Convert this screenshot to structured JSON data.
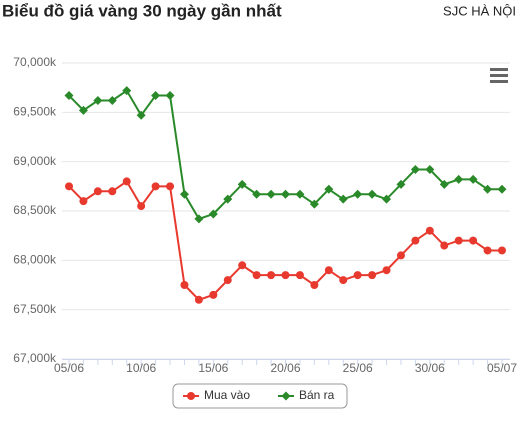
{
  "chart_data": {
    "type": "line",
    "title": "Biểu đồ giá vàng 30 ngày gần nhất",
    "subtitle": "SJC HÀ NỘI",
    "categories": [
      "05/06",
      null,
      null,
      null,
      null,
      "10/06",
      null,
      null,
      null,
      null,
      "15/06",
      null,
      null,
      null,
      null,
      "20/06",
      null,
      null,
      null,
      null,
      "25/06",
      null,
      null,
      null,
      null,
      "30/06",
      null,
      null,
      null,
      null,
      "05/07"
    ],
    "series": [
      {
        "name": "Mua vào",
        "color": "#e8392e",
        "marker": "circle",
        "values": [
          68750,
          68600,
          68700,
          68700,
          68800,
          68550,
          68750,
          68750,
          67750,
          67600,
          67650,
          67800,
          67950,
          67850,
          67850,
          67850,
          67850,
          67750,
          67900,
          67800,
          67850,
          67850,
          67900,
          68050,
          68200,
          68300,
          68150,
          68200,
          68200,
          68100,
          68100
        ]
      },
      {
        "name": "Bán ra",
        "color": "#2a8a2a",
        "marker": "diamond",
        "values": [
          69670,
          69520,
          69620,
          69620,
          69720,
          69470,
          69670,
          69670,
          68670,
          68420,
          68470,
          68620,
          68770,
          68670,
          68670,
          68670,
          68670,
          68570,
          68720,
          68620,
          68670,
          68670,
          68620,
          68770,
          68920,
          68920,
          68770,
          68820,
          68820,
          68720,
          68720
        ]
      }
    ],
    "ylim": [
      67000,
      70000
    ],
    "yticks": [
      {
        "value": 67000,
        "label": "67,000k"
      },
      {
        "value": 67500,
        "label": "67,500k"
      },
      {
        "value": 68000,
        "label": "68,000k"
      },
      {
        "value": 68500,
        "label": "68,500k"
      },
      {
        "value": 69000,
        "label": "69,000k"
      },
      {
        "value": 69500,
        "label": "69,500k"
      },
      {
        "value": 70000,
        "label": "70,000k"
      }
    ],
    "grid": true,
    "legend": "bottom"
  }
}
